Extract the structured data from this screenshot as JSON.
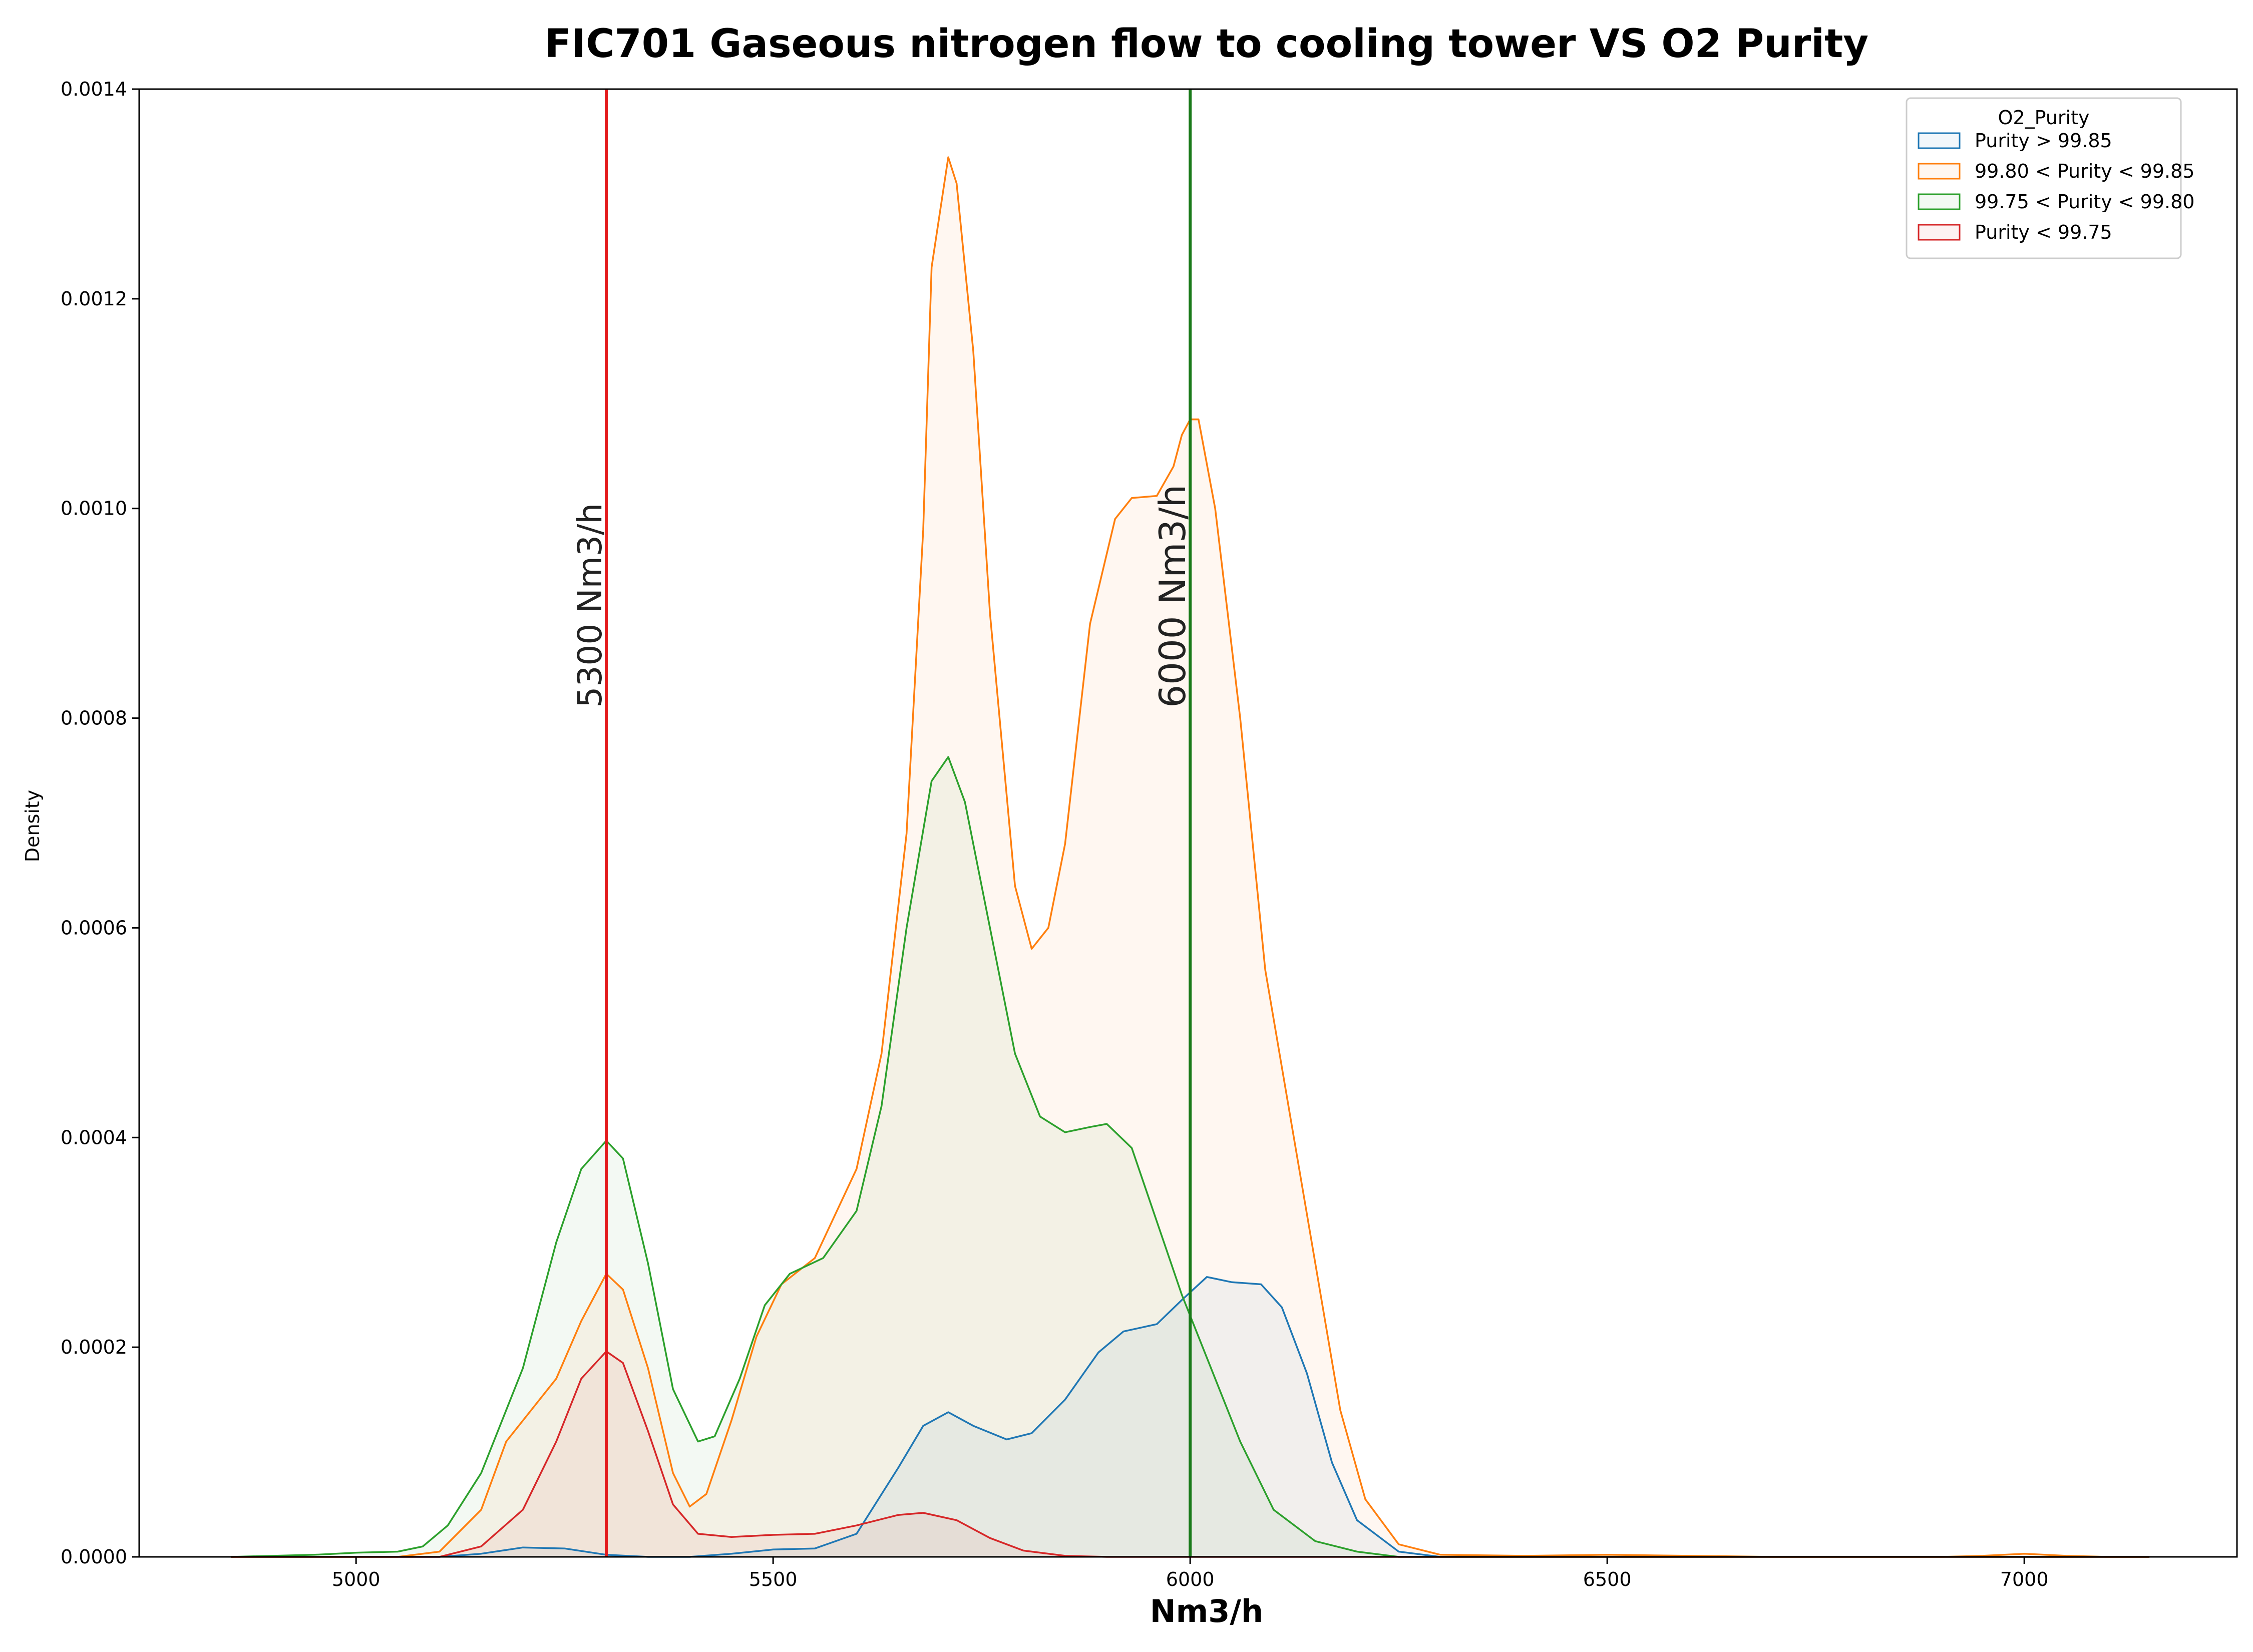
{
  "chart_data": {
    "type": "area",
    "title": "FIC701 Gaseous nitrogen flow to cooling tower VS O2 Purity",
    "xlabel": "Nm3/h",
    "ylabel": "Density",
    "xlim": [
      4740,
      7255
    ],
    "ylim": [
      0,
      0.0014
    ],
    "xticks": [
      5000,
      5500,
      6000,
      6500,
      7000
    ],
    "yticks": [
      "0.0000",
      "0.0002",
      "0.0004",
      "0.0006",
      "0.0008",
      "0.0010",
      "0.0012",
      "0.0014"
    ],
    "grid": false,
    "legend": {
      "title": "O2_Purity",
      "placement": "top-right"
    },
    "series": [
      {
        "name": "Purity > 99.85",
        "color": "#1f77b4",
        "points": [
          [
            4850,
            0
          ],
          [
            5100,
            0
          ],
          [
            5150,
            3e-06
          ],
          [
            5200,
            9e-06
          ],
          [
            5250,
            8e-06
          ],
          [
            5300,
            2e-06
          ],
          [
            5350,
            0
          ],
          [
            5400,
            0
          ],
          [
            5450,
            3e-06
          ],
          [
            5500,
            7e-06
          ],
          [
            5550,
            8e-06
          ],
          [
            5600,
            2.2e-05
          ],
          [
            5650,
            8.5e-05
          ],
          [
            5680,
            0.000125
          ],
          [
            5710,
            0.000138
          ],
          [
            5740,
            0.000125
          ],
          [
            5780,
            0.000112
          ],
          [
            5810,
            0.000118
          ],
          [
            5850,
            0.00015
          ],
          [
            5890,
            0.000195
          ],
          [
            5920,
            0.000215
          ],
          [
            5960,
            0.000222
          ],
          [
            5990,
            0.000245
          ],
          [
            6020,
            0.000267
          ],
          [
            6050,
            0.000262
          ],
          [
            6085,
            0.00026
          ],
          [
            6110,
            0.000238
          ],
          [
            6140,
            0.000175
          ],
          [
            6170,
            9e-05
          ],
          [
            6200,
            3.5e-05
          ],
          [
            6250,
            5e-06
          ],
          [
            6300,
            0
          ],
          [
            7150,
            0
          ]
        ]
      },
      {
        "name": "99.80 < Purity < 99.85",
        "color": "#ff7f0e",
        "points": [
          [
            4850,
            0
          ],
          [
            5050,
            0
          ],
          [
            5100,
            5e-06
          ],
          [
            5150,
            4.5e-05
          ],
          [
            5180,
            0.00011
          ],
          [
            5210,
            0.00014
          ],
          [
            5240,
            0.00017
          ],
          [
            5270,
            0.000225
          ],
          [
            5300,
            0.00027
          ],
          [
            5320,
            0.000255
          ],
          [
            5350,
            0.00018
          ],
          [
            5380,
            8e-05
          ],
          [
            5400,
            4.8e-05
          ],
          [
            5420,
            6e-05
          ],
          [
            5450,
            0.00013
          ],
          [
            5480,
            0.00021
          ],
          [
            5510,
            0.00026
          ],
          [
            5550,
            0.000285
          ],
          [
            5600,
            0.00037
          ],
          [
            5630,
            0.00048
          ],
          [
            5660,
            0.00069
          ],
          [
            5680,
            0.00098
          ],
          [
            5690,
            0.00123
          ],
          [
            5710,
            0.001335
          ],
          [
            5720,
            0.00131
          ],
          [
            5740,
            0.00115
          ],
          [
            5760,
            0.0009
          ],
          [
            5790,
            0.00064
          ],
          [
            5810,
            0.00058
          ],
          [
            5830,
            0.0006
          ],
          [
            5850,
            0.00068
          ],
          [
            5880,
            0.00089
          ],
          [
            5910,
            0.00099
          ],
          [
            5930,
            0.00101
          ],
          [
            5960,
            0.001012
          ],
          [
            5980,
            0.00104
          ],
          [
            5990,
            0.00107
          ],
          [
            6000,
            0.001085
          ],
          [
            6010,
            0.001085
          ],
          [
            6030,
            0.001
          ],
          [
            6060,
            0.0008
          ],
          [
            6090,
            0.00056
          ],
          [
            6120,
            0.00042
          ],
          [
            6150,
            0.00028
          ],
          [
            6180,
            0.00014
          ],
          [
            6210,
            5.5e-05
          ],
          [
            6250,
            1.2e-05
          ],
          [
            6300,
            2e-06
          ],
          [
            6400,
            1e-06
          ],
          [
            6500,
            2e-06
          ],
          [
            6600,
            1e-06
          ],
          [
            6700,
            0
          ],
          [
            6900,
            0
          ],
          [
            6950,
            1e-06
          ],
          [
            7000,
            3e-06
          ],
          [
            7050,
            1e-06
          ],
          [
            7100,
            0
          ],
          [
            7150,
            0
          ]
        ]
      },
      {
        "name": "99.75 < Purity < 99.80",
        "color": "#2ca02c",
        "points": [
          [
            4850,
            0
          ],
          [
            4950,
            2e-06
          ],
          [
            5000,
            4e-06
          ],
          [
            5050,
            5e-06
          ],
          [
            5080,
            1e-05
          ],
          [
            5110,
            3e-05
          ],
          [
            5150,
            8e-05
          ],
          [
            5200,
            0.00018
          ],
          [
            5240,
            0.0003
          ],
          [
            5270,
            0.00037
          ],
          [
            5300,
            0.000397
          ],
          [
            5320,
            0.00038
          ],
          [
            5350,
            0.00028
          ],
          [
            5380,
            0.00016
          ],
          [
            5410,
            0.00011
          ],
          [
            5430,
            0.000115
          ],
          [
            5460,
            0.00017
          ],
          [
            5490,
            0.00024
          ],
          [
            5520,
            0.00027
          ],
          [
            5560,
            0.000285
          ],
          [
            5600,
            0.00033
          ],
          [
            5630,
            0.00043
          ],
          [
            5660,
            0.0006
          ],
          [
            5690,
            0.00074
          ],
          [
            5710,
            0.000763
          ],
          [
            5730,
            0.00072
          ],
          [
            5760,
            0.0006
          ],
          [
            5790,
            0.00048
          ],
          [
            5820,
            0.00042
          ],
          [
            5850,
            0.000405
          ],
          [
            5880,
            0.00041
          ],
          [
            5900,
            0.000413
          ],
          [
            5930,
            0.00039
          ],
          [
            5960,
            0.00032
          ],
          [
            5990,
            0.00025
          ],
          [
            6020,
            0.00019
          ],
          [
            6060,
            0.00011
          ],
          [
            6100,
            4.5e-05
          ],
          [
            6150,
            1.5e-05
          ],
          [
            6200,
            5e-06
          ],
          [
            6250,
            0
          ],
          [
            7150,
            0
          ]
        ]
      },
      {
        "name": "Purity < 99.75",
        "color": "#d62728",
        "points": [
          [
            4850,
            0
          ],
          [
            5100,
            0
          ],
          [
            5150,
            1e-05
          ],
          [
            5200,
            4.5e-05
          ],
          [
            5240,
            0.00011
          ],
          [
            5270,
            0.00017
          ],
          [
            5300,
            0.000196
          ],
          [
            5320,
            0.000185
          ],
          [
            5350,
            0.00012
          ],
          [
            5380,
            5e-05
          ],
          [
            5410,
            2.2e-05
          ],
          [
            5450,
            1.9e-05
          ],
          [
            5500,
            2.1e-05
          ],
          [
            5550,
            2.2e-05
          ],
          [
            5600,
            3e-05
          ],
          [
            5650,
            4e-05
          ],
          [
            5680,
            4.2e-05
          ],
          [
            5720,
            3.5e-05
          ],
          [
            5760,
            1.8e-05
          ],
          [
            5800,
            6e-06
          ],
          [
            5850,
            1e-06
          ],
          [
            5900,
            0
          ],
          [
            7150,
            0
          ]
        ]
      }
    ],
    "vlines": [
      {
        "x": 5300,
        "color": "#e31a1c",
        "label": "5300 Nm3/h"
      },
      {
        "x": 6000,
        "color": "#1a7a1a",
        "label": "6000 Nm3/h"
      }
    ]
  }
}
